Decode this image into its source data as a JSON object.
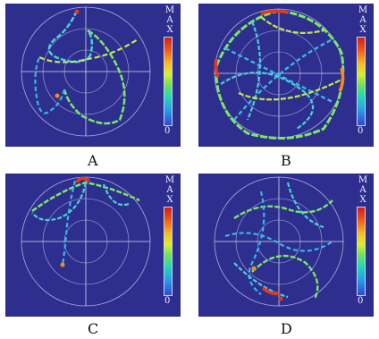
{
  "colorbar": {
    "max": "M\nA\nX",
    "min": "0"
  },
  "panels": [
    {
      "id": "A",
      "label": "A"
    },
    {
      "id": "B",
      "label": "B"
    },
    {
      "id": "C",
      "label": "C"
    },
    {
      "id": "D",
      "label": "D"
    }
  ],
  "colors": {
    "background": "#2e2e8e",
    "track_low": "#38b6e8",
    "track_mid": "#7be66a",
    "track_high": "#e23a1a",
    "rings": "#aab0dc"
  }
}
